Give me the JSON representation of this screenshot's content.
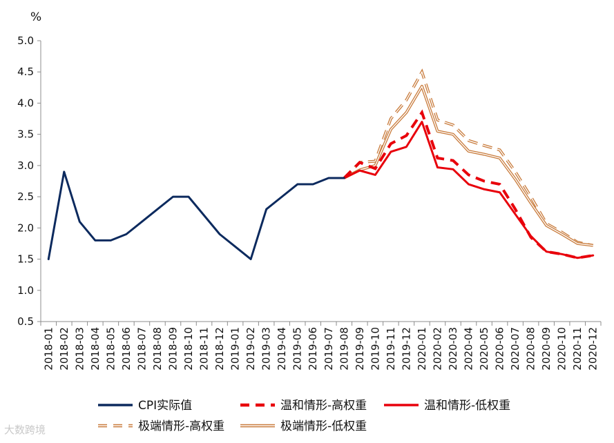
{
  "chart_data": {
    "type": "line",
    "ylabel": "%",
    "ylim": [
      0.5,
      5.0
    ],
    "yticks": [
      "0.5",
      "1.0",
      "1.5",
      "2.0",
      "2.5",
      "3.0",
      "3.5",
      "4.0",
      "4.5",
      "5.0"
    ],
    "categories": [
      "2018-01",
      "2018-02",
      "2018-03",
      "2018-04",
      "2018-05",
      "2018-06",
      "2018-07",
      "2018-08",
      "2018-09",
      "2018-10",
      "2018-11",
      "2018-12",
      "2019-01",
      "2019-02",
      "2019-03",
      "2019-04",
      "2019-05",
      "2019-06",
      "2019-07",
      "2019-08",
      "2019-09",
      "2019-10",
      "2019-11",
      "2019-12",
      "2020-01",
      "2020-02",
      "2020-03",
      "2020-04",
      "2020-05",
      "2020-06",
      "2020-07",
      "2020-08",
      "2020-09",
      "2020-10",
      "2020-11",
      "2020-12"
    ],
    "series": [
      {
        "name": "CPI实际值",
        "color": "#0c2a5e",
        "style": "solid",
        "values": [
          1.5,
          2.9,
          2.1,
          1.8,
          1.8,
          1.9,
          2.1,
          2.3,
          2.5,
          2.5,
          2.2,
          1.9,
          1.7,
          1.5,
          2.3,
          2.5,
          2.7,
          2.7,
          2.8,
          2.8,
          null,
          null,
          null,
          null,
          null,
          null,
          null,
          null,
          null,
          null,
          null,
          null,
          null,
          null,
          null,
          null
        ]
      },
      {
        "name": "温和情形-高权重",
        "color": "#e8000b",
        "style": "dashed",
        "values": [
          null,
          null,
          null,
          null,
          null,
          null,
          null,
          null,
          null,
          null,
          null,
          null,
          null,
          null,
          null,
          null,
          null,
          null,
          null,
          2.8,
          3.05,
          2.95,
          3.35,
          3.48,
          3.85,
          3.12,
          3.08,
          2.85,
          2.75,
          2.7,
          2.3,
          1.85,
          1.62,
          1.58,
          1.52,
          1.56
        ]
      },
      {
        "name": "温和情形-低权重",
        "color": "#e8000b",
        "style": "solid",
        "values": [
          null,
          null,
          null,
          null,
          null,
          null,
          null,
          null,
          null,
          null,
          null,
          null,
          null,
          null,
          null,
          null,
          null,
          null,
          null,
          2.8,
          2.92,
          2.85,
          3.22,
          3.3,
          3.7,
          2.97,
          2.94,
          2.7,
          2.62,
          2.57,
          2.22,
          1.87,
          1.62,
          1.58,
          1.52,
          1.56
        ]
      },
      {
        "name": "极端情形-高权重",
        "color": "#c87a3a",
        "style": "double-dashed",
        "values": [
          null,
          null,
          null,
          null,
          null,
          null,
          null,
          null,
          null,
          null,
          null,
          null,
          null,
          null,
          null,
          null,
          null,
          null,
          null,
          2.8,
          3.05,
          3.07,
          3.75,
          4.05,
          4.5,
          3.73,
          3.65,
          3.4,
          3.32,
          3.25,
          2.9,
          2.5,
          2.07,
          1.93,
          1.77,
          1.72
        ]
      },
      {
        "name": "极端情形-低权重",
        "color": "#c87a3a",
        "style": "double-solid",
        "values": [
          null,
          null,
          null,
          null,
          null,
          null,
          null,
          null,
          null,
          null,
          null,
          null,
          null,
          null,
          null,
          null,
          null,
          null,
          null,
          2.8,
          2.93,
          3.0,
          3.58,
          3.85,
          4.27,
          3.55,
          3.5,
          3.23,
          3.18,
          3.12,
          2.78,
          2.4,
          2.04,
          1.9,
          1.75,
          1.72
        ]
      }
    ]
  },
  "watermark": "大数跨境"
}
